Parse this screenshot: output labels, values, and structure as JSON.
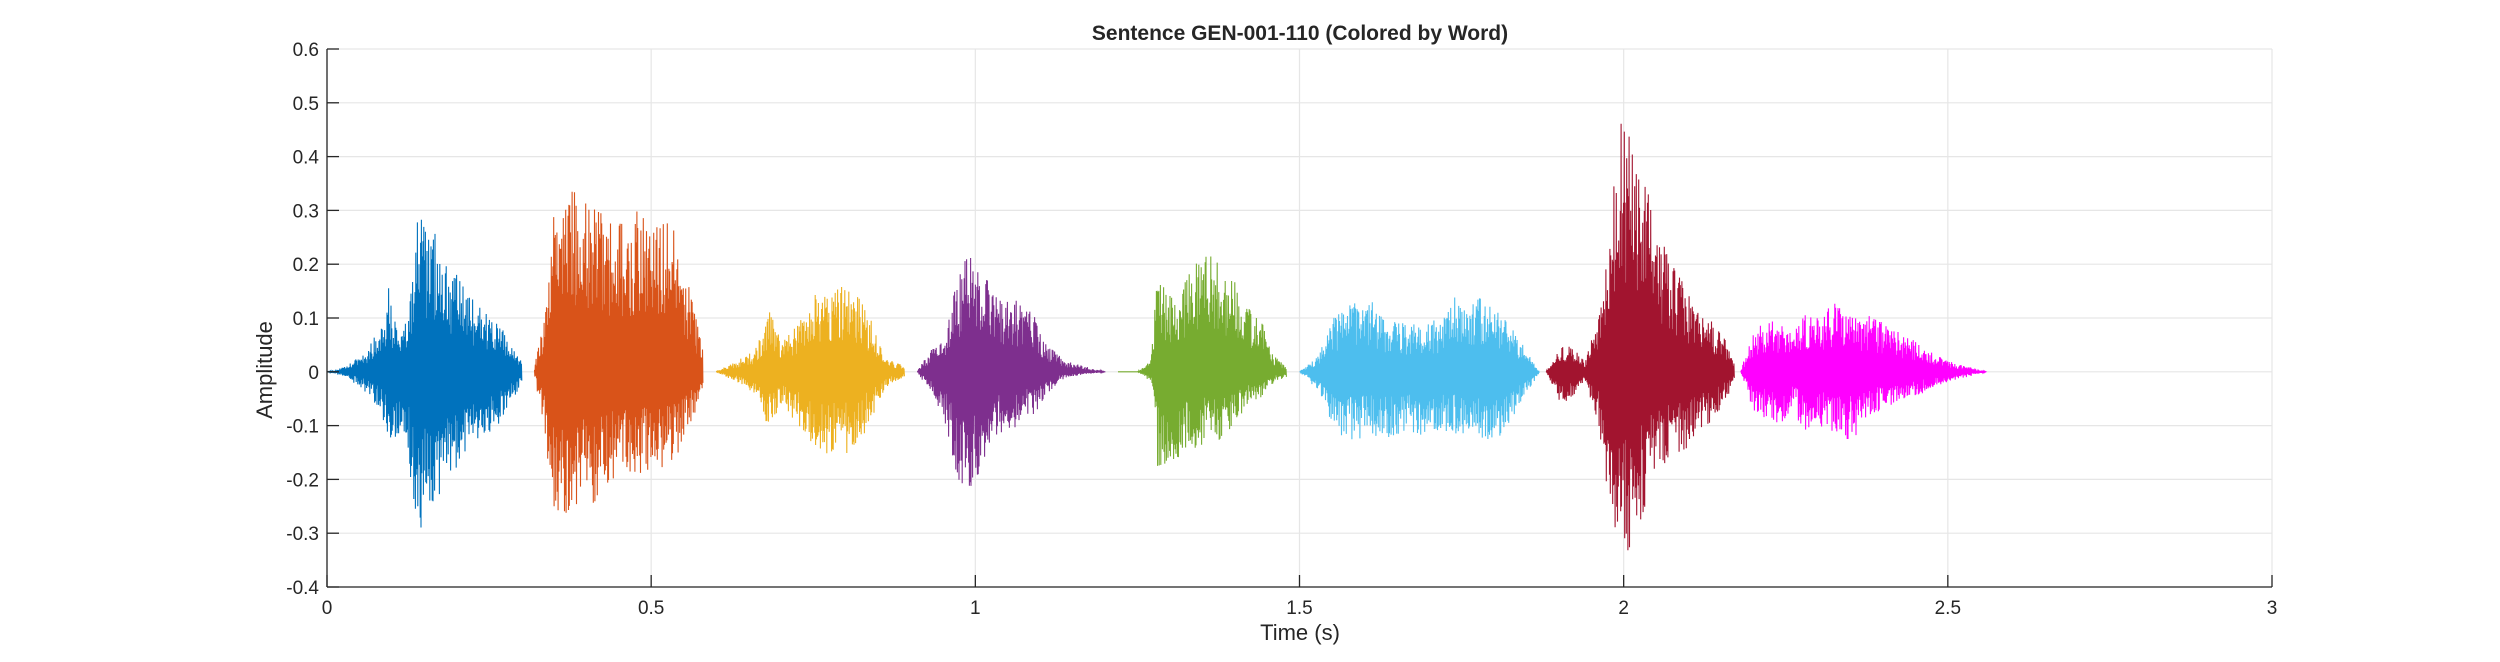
{
  "chart_data": {
    "type": "line",
    "title": "Sentence GEN-001-110 (Colored by Word)",
    "xlabel": "Time (s)",
    "ylabel": "Amplitude",
    "xlim": [
      0,
      3
    ],
    "ylim": [
      -0.4,
      0.6
    ],
    "xticks": [
      0,
      0.5,
      1,
      1.5,
      2,
      2.5,
      3
    ],
    "xtick_labels": [
      "0",
      "0.5",
      "1",
      "1.5",
      "2",
      "2.5",
      "3"
    ],
    "yticks": [
      -0.4,
      -0.3,
      -0.2,
      -0.1,
      0,
      0.1,
      0.2,
      0.3,
      0.4,
      0.5,
      0.6
    ],
    "ytick_labels": [
      "-0.4",
      "-0.3",
      "-0.2",
      "-0.1",
      "0",
      "0.1",
      "0.2",
      "0.3",
      "0.4",
      "0.5",
      "0.6"
    ],
    "grid": true,
    "series": [
      {
        "color": "#0072BD",
        "t_start": 0.0,
        "t_end": 0.3,
        "envelope": [
          [
            0.0,
            0.0
          ],
          [
            0.03,
            0.01
          ],
          [
            0.06,
            0.04
          ],
          [
            0.08,
            0.08
          ],
          [
            0.095,
            0.16
          ],
          [
            0.105,
            0.1
          ],
          [
            0.12,
            0.08
          ],
          [
            0.14,
            0.3
          ],
          [
            0.155,
            0.27
          ],
          [
            0.17,
            0.26
          ],
          [
            0.185,
            0.21
          ],
          [
            0.21,
            0.16
          ],
          [
            0.24,
            0.12
          ],
          [
            0.27,
            0.08
          ],
          [
            0.3,
            0.02
          ]
        ],
        "envelope_neg": [
          [
            0.0,
            0.0
          ],
          [
            0.03,
            0.01
          ],
          [
            0.06,
            0.04
          ],
          [
            0.08,
            0.07
          ],
          [
            0.095,
            0.12
          ],
          [
            0.105,
            0.13
          ],
          [
            0.12,
            0.12
          ],
          [
            0.14,
            0.33
          ],
          [
            0.155,
            0.28
          ],
          [
            0.17,
            0.24
          ],
          [
            0.185,
            0.2
          ],
          [
            0.21,
            0.17
          ],
          [
            0.24,
            0.13
          ],
          [
            0.27,
            0.09
          ],
          [
            0.3,
            0.02
          ]
        ]
      },
      {
        "color": "#D95319",
        "t_start": 0.32,
        "t_end": 0.58,
        "envelope": [
          [
            0.32,
            0.01
          ],
          [
            0.335,
            0.1
          ],
          [
            0.35,
            0.3
          ],
          [
            0.365,
            0.38
          ],
          [
            0.38,
            0.34
          ],
          [
            0.4,
            0.32
          ],
          [
            0.42,
            0.3
          ],
          [
            0.44,
            0.28
          ],
          [
            0.46,
            0.29
          ],
          [
            0.48,
            0.3
          ],
          [
            0.5,
            0.28
          ],
          [
            0.52,
            0.29
          ],
          [
            0.54,
            0.26
          ],
          [
            0.56,
            0.15
          ],
          [
            0.58,
            0.04
          ]
        ],
        "envelope_neg": [
          [
            0.32,
            0.01
          ],
          [
            0.335,
            0.12
          ],
          [
            0.35,
            0.27
          ],
          [
            0.365,
            0.28
          ],
          [
            0.38,
            0.26
          ],
          [
            0.4,
            0.25
          ],
          [
            0.42,
            0.24
          ],
          [
            0.44,
            0.2
          ],
          [
            0.46,
            0.2
          ],
          [
            0.48,
            0.19
          ],
          [
            0.5,
            0.19
          ],
          [
            0.52,
            0.18
          ],
          [
            0.54,
            0.16
          ],
          [
            0.56,
            0.1
          ],
          [
            0.58,
            0.03
          ]
        ]
      },
      {
        "color": "#EDB120",
        "t_start": 0.6,
        "t_end": 0.89,
        "envelope": [
          [
            0.6,
            0.0
          ],
          [
            0.63,
            0.02
          ],
          [
            0.66,
            0.04
          ],
          [
            0.68,
            0.12
          ],
          [
            0.7,
            0.06
          ],
          [
            0.72,
            0.08
          ],
          [
            0.74,
            0.13
          ],
          [
            0.76,
            0.15
          ],
          [
            0.78,
            0.16
          ],
          [
            0.8,
            0.16
          ],
          [
            0.82,
            0.14
          ],
          [
            0.84,
            0.1
          ],
          [
            0.86,
            0.03
          ],
          [
            0.89,
            0.01
          ]
        ],
        "envelope_neg": [
          [
            0.6,
            0.0
          ],
          [
            0.63,
            0.02
          ],
          [
            0.66,
            0.04
          ],
          [
            0.68,
            0.11
          ],
          [
            0.7,
            0.06
          ],
          [
            0.72,
            0.09
          ],
          [
            0.74,
            0.13
          ],
          [
            0.76,
            0.15
          ],
          [
            0.78,
            0.16
          ],
          [
            0.8,
            0.16
          ],
          [
            0.82,
            0.14
          ],
          [
            0.84,
            0.09
          ],
          [
            0.86,
            0.03
          ],
          [
            0.89,
            0.01
          ]
        ]
      },
      {
        "color": "#7E2F8E",
        "t_start": 0.91,
        "t_end": 1.2,
        "envelope": [
          [
            0.91,
            0.0
          ],
          [
            0.93,
            0.04
          ],
          [
            0.95,
            0.06
          ],
          [
            0.97,
            0.16
          ],
          [
            0.99,
            0.23
          ],
          [
            1.01,
            0.18
          ],
          [
            1.03,
            0.16
          ],
          [
            1.05,
            0.14
          ],
          [
            1.07,
            0.13
          ],
          [
            1.09,
            0.11
          ],
          [
            1.11,
            0.05
          ],
          [
            1.14,
            0.02
          ],
          [
            1.2,
            0.0
          ]
        ],
        "envelope_neg": [
          [
            0.91,
            0.0
          ],
          [
            0.93,
            0.04
          ],
          [
            0.95,
            0.08
          ],
          [
            0.97,
            0.2
          ],
          [
            0.99,
            0.24
          ],
          [
            1.01,
            0.17
          ],
          [
            1.03,
            0.13
          ],
          [
            1.05,
            0.11
          ],
          [
            1.07,
            0.1
          ],
          [
            1.09,
            0.08
          ],
          [
            1.11,
            0.04
          ],
          [
            1.14,
            0.01
          ],
          [
            1.2,
            0.0
          ]
        ]
      },
      {
        "color": "#77AC30",
        "t_start": 1.22,
        "t_end": 1.48,
        "envelope": [
          [
            1.22,
            0.0
          ],
          [
            1.25,
            0.0
          ],
          [
            1.27,
            0.02
          ],
          [
            1.28,
            0.17
          ],
          [
            1.3,
            0.15
          ],
          [
            1.32,
            0.16
          ],
          [
            1.34,
            0.21
          ],
          [
            1.36,
            0.22
          ],
          [
            1.38,
            0.2
          ],
          [
            1.4,
            0.17
          ],
          [
            1.42,
            0.12
          ],
          [
            1.44,
            0.1
          ],
          [
            1.46,
            0.03
          ],
          [
            1.48,
            0.01
          ]
        ],
        "envelope_neg": [
          [
            1.22,
            0.0
          ],
          [
            1.25,
            0.0
          ],
          [
            1.27,
            0.02
          ],
          [
            1.28,
            0.18
          ],
          [
            1.3,
            0.17
          ],
          [
            1.32,
            0.16
          ],
          [
            1.34,
            0.15
          ],
          [
            1.36,
            0.13
          ],
          [
            1.38,
            0.13
          ],
          [
            1.4,
            0.11
          ],
          [
            1.42,
            0.06
          ],
          [
            1.44,
            0.05
          ],
          [
            1.46,
            0.02
          ],
          [
            1.48,
            0.01
          ]
        ]
      },
      {
        "color": "#4DBEEE",
        "t_start": 1.5,
        "t_end": 1.87,
        "envelope": [
          [
            1.5,
            0.0
          ],
          [
            1.53,
            0.03
          ],
          [
            1.55,
            0.1
          ],
          [
            1.57,
            0.12
          ],
          [
            1.59,
            0.13
          ],
          [
            1.61,
            0.14
          ],
          [
            1.63,
            0.1
          ],
          [
            1.66,
            0.09
          ],
          [
            1.69,
            0.09
          ],
          [
            1.72,
            0.1
          ],
          [
            1.74,
            0.15
          ],
          [
            1.76,
            0.13
          ],
          [
            1.78,
            0.14
          ],
          [
            1.8,
            0.13
          ],
          [
            1.83,
            0.08
          ],
          [
            1.87,
            0.0
          ]
        ],
        "envelope_neg": [
          [
            1.5,
            0.0
          ],
          [
            1.53,
            0.04
          ],
          [
            1.55,
            0.1
          ],
          [
            1.57,
            0.13
          ],
          [
            1.59,
            0.13
          ],
          [
            1.61,
            0.12
          ],
          [
            1.63,
            0.13
          ],
          [
            1.66,
            0.12
          ],
          [
            1.69,
            0.12
          ],
          [
            1.72,
            0.11
          ],
          [
            1.74,
            0.12
          ],
          [
            1.76,
            0.12
          ],
          [
            1.78,
            0.13
          ],
          [
            1.8,
            0.13
          ],
          [
            1.83,
            0.09
          ],
          [
            1.87,
            0.0
          ]
        ]
      },
      {
        "color": "#A2142F",
        "t_start": 1.88,
        "t_end": 2.17,
        "envelope": [
          [
            1.88,
            0.0
          ],
          [
            1.9,
            0.04
          ],
          [
            1.92,
            0.06
          ],
          [
            1.94,
            0.02
          ],
          [
            1.96,
            0.1
          ],
          [
            1.98,
            0.3
          ],
          [
            1.995,
            0.5
          ],
          [
            2.01,
            0.44
          ],
          [
            2.03,
            0.37
          ],
          [
            2.05,
            0.28
          ],
          [
            2.07,
            0.22
          ],
          [
            2.09,
            0.17
          ],
          [
            2.11,
            0.12
          ],
          [
            2.13,
            0.1
          ],
          [
            2.15,
            0.08
          ],
          [
            2.17,
            0.02
          ]
        ],
        "envelope_neg": [
          [
            1.88,
            0.0
          ],
          [
            1.9,
            0.06
          ],
          [
            1.92,
            0.05
          ],
          [
            1.94,
            0.02
          ],
          [
            1.96,
            0.1
          ],
          [
            1.98,
            0.28
          ],
          [
            1.995,
            0.32
          ],
          [
            2.01,
            0.34
          ],
          [
            2.03,
            0.26
          ],
          [
            2.05,
            0.2
          ],
          [
            2.07,
            0.16
          ],
          [
            2.09,
            0.15
          ],
          [
            2.11,
            0.13
          ],
          [
            2.13,
            0.1
          ],
          [
            2.15,
            0.07
          ],
          [
            2.17,
            0.02
          ]
        ]
      },
      {
        "color": "#FF00FF",
        "t_start": 2.18,
        "t_end": 2.56,
        "envelope": [
          [
            2.18,
            0.0
          ],
          [
            2.2,
            0.08
          ],
          [
            2.22,
            0.1
          ],
          [
            2.24,
            0.09
          ],
          [
            2.26,
            0.07
          ],
          [
            2.28,
            0.11
          ],
          [
            2.3,
            0.1
          ],
          [
            2.32,
            0.13
          ],
          [
            2.34,
            0.12
          ],
          [
            2.36,
            0.1
          ],
          [
            2.38,
            0.11
          ],
          [
            2.4,
            0.09
          ],
          [
            2.43,
            0.07
          ],
          [
            2.46,
            0.05
          ],
          [
            2.5,
            0.02
          ],
          [
            2.56,
            0.0
          ]
        ],
        "envelope_neg": [
          [
            2.18,
            0.0
          ],
          [
            2.2,
            0.08
          ],
          [
            2.22,
            0.09
          ],
          [
            2.24,
            0.1
          ],
          [
            2.26,
            0.07
          ],
          [
            2.28,
            0.12
          ],
          [
            2.3,
            0.1
          ],
          [
            2.32,
            0.11
          ],
          [
            2.34,
            0.13
          ],
          [
            2.36,
            0.12
          ],
          [
            2.38,
            0.08
          ],
          [
            2.4,
            0.07
          ],
          [
            2.43,
            0.05
          ],
          [
            2.46,
            0.04
          ],
          [
            2.5,
            0.02
          ],
          [
            2.56,
            0.0
          ]
        ]
      }
    ]
  }
}
